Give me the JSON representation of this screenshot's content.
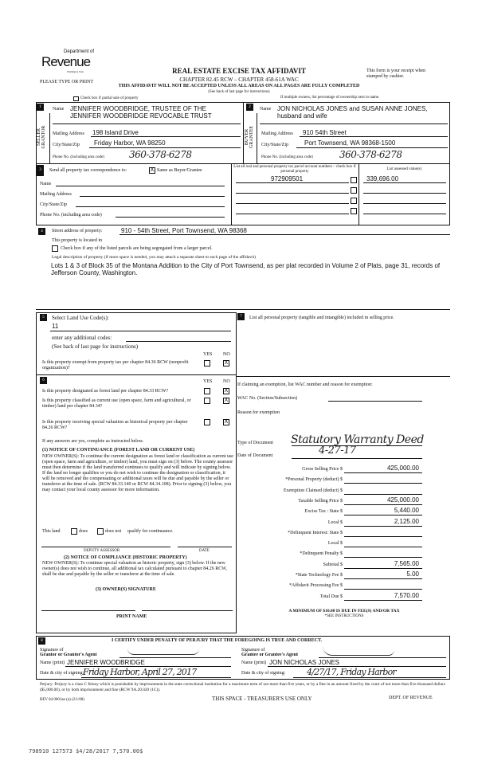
{
  "header": {
    "logo_top": "Department of",
    "logo_main": "Revenue",
    "logo_sub": "Washington State",
    "title": "REAL ESTATE EXCISE TAX AFFIDAVIT",
    "chapter": "CHAPTER 82.45 RCW – CHAPTER 458-61A WAC",
    "warning": "THIS AFFIDAVIT WILL NOT BE ACCEPTED UNLESS ALL AREAS ON ALL PAGES ARE FULLY COMPLETED",
    "see_back": "(See back of last page for instructions)",
    "please_type": "PLEASE TYPE OR PRINT",
    "receipt_note": "This form is your receipt when stamped by cashier.",
    "partial_sale": "Check box if partial sale of property",
    "multiple_owners": "If multiple owners, list percentage of ownership next to name."
  },
  "seller": {
    "num": "1",
    "side_label": "SELLER GRANTOR",
    "name_label": "Name",
    "name1": "JENNIFER WOODBRIDGE, TRUSTEE OF THE",
    "name2": "JENNIFER WOODBRIDGE REVOCABLE TRUST",
    "mail_label": "Mailing Address",
    "mail": "198 Island Drive",
    "city_label": "City/State/Zip",
    "city": "Friday Harbor, WA 98250",
    "phone_label": "Phone No. (including area code)",
    "phone": "360-378-6278"
  },
  "buyer": {
    "num": "2",
    "side_label": "BUYER GRANTEE",
    "name_label": "Name",
    "name1": "JON NICHOLAS JONES and SUSAN ANNE JONES,",
    "name2": "husband and wife",
    "mail_label": "Mailing Address",
    "mail": "910 54th Street",
    "city_label": "City/State/Zip",
    "city": "Port Townsend, WA 98368-1500",
    "phone_label": "Phone No. (including area code)",
    "phone": "360-378-6278"
  },
  "sec3": {
    "num": "3",
    "send_label": "Send all property tax correspondence to:",
    "same_checked": "X",
    "same_label": "Same as Buyer/Grantee",
    "name_label": "Name",
    "mail_label": "Mailing Address",
    "city_label": "City/State/Zip",
    "phone_label": "Phone No. (including area code)",
    "parcel_header": "List all real and personal property tax parcel account numbers – check box if personal property",
    "parcel": "972909501",
    "assessed_header": "List assessed value(s)",
    "assessed": "339,696.00"
  },
  "sec4": {
    "num": "4",
    "street_label": "Street address of property:",
    "street": "910 - 54th Street, Port Townsend, WA 98368",
    "located": "This property is located in",
    "segregated": "Check box if any of the listed parcels are being segregated from a larger parcel.",
    "legal_label": "Legal description of property (if more space is needed, you may attach a separate sheet to each page of the affidavit)",
    "legal": "Lots 1 & 3 of Block 35 of the Montana Addition to the City of Port Townsend, as per plat recorded in  Volume 2 of Plats, page 31, records of Jefferson County, Washington."
  },
  "sec5": {
    "num": "5",
    "land_use_label": "Select Land Use Code(s):",
    "land_use": "11",
    "additional": "enter any additional codes:",
    "see_back": "(See back of last page for instructions)",
    "yes": "YES",
    "no": "NO",
    "q_exempt": "Is this property exempt from property tax per chapter 84.36 RCW (nonprofit organization)?",
    "a_exempt": "X"
  },
  "sec6": {
    "num": "6",
    "yes": "YES",
    "no": "NO",
    "q1": "Is this property designated as forest land per chapter 84.33 RCW?",
    "q2": "Is this property classified as current use (open space, farm and agricultural, or timber) land per chapter 84.34?",
    "q3": "Is this property receiving special valuation as historical property per chapter 84.26 RCW?",
    "a": "X",
    "if_yes": "If any answers are yes, complete as instructed below.",
    "n1_title": "(1) NOTICE OF CONTINUANCE  (FOREST LAND OR CURRENT USE)",
    "n1_text": "NEW OWNER(S): To continue the current designation as forest land or classification as current use (open space, farm and agriculture, or timber) land, you must sign on (3) below. The county assessor must then determine if the land transferred continues to qualify and will indicate by signing below. If the land no longer qualifies or you do not wish to continue the designation or classification, it will be removed and the compensating or additional taxes will be due and payable by the seller or transferor at the time of sale. (RCW 84.33.140 or RCW 84.34.108). Prior to signing (3) below, you may contact your local county assessor for more information.",
    "this_land": "This land",
    "does": "does",
    "does_not": "does not",
    "qualify": "qualify for continuance.",
    "deputy": "DEPUTY ASSESSOR",
    "date": "DATE",
    "n2_title": "(2) NOTICE OF COMPLIANCE (HISTORIC PROPERTY)",
    "n2_text": "NEW OWNER(S): To continue special valuation as historic property, sign (3) below. If the new owner(s) does not wish to continue, all additional tax calculated pursuant to chapter 84.26 RCW, shall be due and payable by the seller or transferor at the time of sale.",
    "n3_title": "(3)  OWNER(S) SIGNATURE",
    "print_name": "PRINT NAME"
  },
  "sec7": {
    "num": "7",
    "personal_label": "List all  personal property (tangible and intangible) included in selling price.",
    "exemption_label": "If claiming an exemption, list WAC number and reason for exemption:",
    "wac_label": "WAC No. (Section/Subsection)",
    "reason_label": "Reason for exemption",
    "doc_type_label": "Type of Document",
    "doc_type": "Statutory Warranty Deed",
    "doc_date_label": "Date of Document",
    "doc_date": "4-27-17",
    "amounts": [
      {
        "label": "Gross Selling Price $",
        "value": "425,000.00"
      },
      {
        "label": "*Personal Property (deduct) $",
        "value": ""
      },
      {
        "label": "Exemption Claimed (deduct) $",
        "value": ""
      },
      {
        "label": "Taxable Selling Price $",
        "value": "425,000.00"
      },
      {
        "label": "Excise Tax : State $",
        "value": "5,440.00"
      },
      {
        "label": "Local $",
        "value": "2,125.00"
      },
      {
        "label": "*Delinquent Interest: State $",
        "value": ""
      },
      {
        "label": "Local $",
        "value": ""
      },
      {
        "label": "*Delinquent Penalty $",
        "value": ""
      },
      {
        "label": "Subtotal $",
        "value": "7,565.00"
      },
      {
        "label": "*State Technology Fee $",
        "value": "5.00"
      },
      {
        "label": "*Affidavit Processing Fee $",
        "value": ""
      },
      {
        "label": "Total Due $",
        "value": "7,570.00"
      }
    ],
    "minimum": "A MINIMUM OF $10.00 IS DUE IN FEE(S) AND/OR TAX",
    "see_instr": "*SEE INSTRUCTIONS"
  },
  "sec8": {
    "num": "8",
    "certify": "I CERTIFY UNDER PENALTY OF PERJURY THAT THE FOREGOING IS TRUE AND CORRECT.",
    "sig_grantor_1": "Signature of",
    "sig_grantor_2": "Grantor or Grantor's Agent",
    "name_print": "Name (print)",
    "grantor_name": "JENNIFER WOODBRIDGE",
    "date_city": "Date & city of signing:",
    "grantor_date": "Friday Harbor, April 27, 2017",
    "sig_grantee_1": "Signature of",
    "sig_grantee_2": "Grantee or Grantee's Agent",
    "grantee_name": "JON NICHOLAS JONES",
    "grantee_date": "4/27/17, Friday Harbor"
  },
  "footer": {
    "perjury": "Perjury: Perjury is a class C felony which is punishable by imprisonment in the state correctional institution for a maximum term of not more than five years, or by a fine in an amount fixed by the court of not more than five thousand dollars ($5,000.00), or by both imprisonment and fine (RCW 9A.20.020 (1C)).",
    "rev": "REV 84 0001ae (a) (2/1/08)",
    "treasurer": "THIS SPACE - TREASURER'S USE ONLY",
    "dept": "DEPT. OF REVENUE",
    "stamp": "798910 127573 $4/28/2017 7,570.00$"
  }
}
